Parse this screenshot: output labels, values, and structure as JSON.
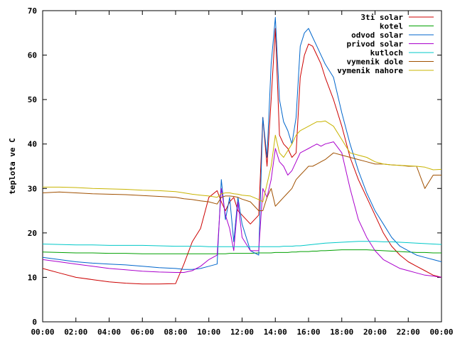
{
  "chart_data": {
    "type": "line",
    "ylabel": "teplota ve C",
    "xlim": [
      "00:00",
      "24:00"
    ],
    "ylim": [
      0,
      70
    ],
    "x_ticks": [
      "00:00",
      "02:00",
      "04:00",
      "06:00",
      "08:00",
      "10:00",
      "12:00",
      "14:00",
      "16:00",
      "18:00",
      "20:00",
      "22:00",
      "00:00"
    ],
    "y_ticks": [
      0,
      10,
      20,
      30,
      40,
      50,
      60,
      70
    ],
    "legend_position": "top-right",
    "grid": false,
    "x": [
      "00:00",
      "01:00",
      "02:00",
      "03:00",
      "04:00",
      "05:00",
      "06:00",
      "07:00",
      "08:00",
      "08:30",
      "09:00",
      "09:30",
      "10:00",
      "10:30",
      "10:45",
      "11:00",
      "11:15",
      "11:30",
      "11:45",
      "12:00",
      "12:30",
      "13:00",
      "13:15",
      "13:30",
      "13:45",
      "14:00",
      "14:15",
      "14:30",
      "14:45",
      "15:00",
      "15:15",
      "15:30",
      "15:45",
      "16:00",
      "16:15",
      "16:30",
      "16:45",
      "17:00",
      "17:30",
      "18:00",
      "18:30",
      "19:00",
      "19:30",
      "20:00",
      "20:30",
      "21:00",
      "21:30",
      "22:00",
      "22:30",
      "23:00",
      "23:30",
      "24:00"
    ],
    "series": [
      {
        "name": "3ti solar",
        "color": "#cc0000",
        "values": [
          12,
          11,
          10,
          9.5,
          9,
          8.7,
          8.5,
          8.5,
          8.6,
          13,
          18,
          21,
          28,
          29.5,
          27,
          25,
          27,
          28,
          25,
          24,
          22,
          24,
          46,
          35,
          50,
          66,
          42,
          40,
          39,
          37,
          38,
          55,
          60,
          62.5,
          62,
          60,
          58,
          55,
          50,
          44,
          37,
          32,
          28,
          24,
          20,
          17,
          15,
          13.5,
          12.5,
          11.5,
          10.5,
          10
        ]
      },
      {
        "name": "kotel",
        "color": "#00a000",
        "values": [
          15.7,
          15.6,
          15.5,
          15.5,
          15.4,
          15.4,
          15.3,
          15.3,
          15.3,
          15.3,
          15.3,
          15.3,
          15.3,
          15.3,
          15.3,
          15.3,
          15.4,
          15.4,
          15.4,
          15.4,
          15.4,
          15.5,
          15.5,
          15.5,
          15.5,
          15.6,
          15.6,
          15.6,
          15.6,
          15.7,
          15.7,
          15.8,
          15.8,
          15.8,
          15.9,
          15.9,
          16,
          16,
          16.1,
          16.2,
          16.2,
          16.2,
          16.2,
          16.1,
          16,
          15.9,
          15.8,
          15.7,
          15.6,
          15.6,
          15.5,
          15.5
        ]
      },
      {
        "name": "odvod solar",
        "color": "#0066cc",
        "values": [
          14.5,
          14,
          13.5,
          13.2,
          13,
          12.8,
          12.5,
          12.2,
          12,
          11.8,
          11.8,
          12,
          12.5,
          13,
          32,
          23,
          28,
          18,
          28,
          22,
          16,
          15,
          46,
          37,
          58,
          68.5,
          50,
          45,
          43,
          40,
          46,
          62,
          65,
          66,
          64,
          62,
          60,
          58,
          55,
          47,
          40,
          34,
          29,
          25,
          22,
          19,
          17,
          16,
          15,
          14.5,
          14,
          13.5
        ]
      },
      {
        "name": "privod solar",
        "color": "#aa00cc",
        "values": [
          14,
          13.5,
          13,
          12.5,
          12,
          11.7,
          11.4,
          11.2,
          11.1,
          11.1,
          11.5,
          12.5,
          14,
          15,
          30,
          24,
          21,
          16,
          27,
          19,
          16,
          16,
          30,
          28,
          32,
          39,
          36,
          35,
          33,
          34,
          36,
          38,
          38.5,
          39,
          39.5,
          40,
          39.5,
          40,
          40.5,
          38,
          30,
          23,
          19,
          16,
          14,
          13,
          12,
          11.5,
          11,
          10.5,
          10.3,
          10
        ]
      },
      {
        "name": "kutloch",
        "color": "#00c8c8",
        "values": [
          17.5,
          17.4,
          17.3,
          17.3,
          17.2,
          17.2,
          17.2,
          17.1,
          17,
          17,
          17,
          17,
          16.9,
          16.9,
          16.9,
          16.9,
          16.9,
          16.9,
          16.9,
          16.9,
          16.9,
          16.9,
          16.9,
          16.9,
          16.9,
          16.9,
          16.9,
          17,
          17,
          17,
          17.1,
          17.1,
          17.2,
          17.3,
          17.4,
          17.5,
          17.6,
          17.7,
          17.8,
          17.9,
          18,
          18.1,
          18.1,
          18.1,
          18,
          18,
          17.9,
          17.8,
          17.7,
          17.6,
          17.5,
          17.4
        ]
      },
      {
        "name": "vymenik dole",
        "color": "#a05000",
        "values": [
          29,
          29.2,
          29,
          28.8,
          28.7,
          28.6,
          28.4,
          28.2,
          28,
          27.7,
          27.5,
          27.2,
          27,
          26.5,
          28,
          28.3,
          28.3,
          28.2,
          28,
          27.6,
          27,
          25,
          25,
          28,
          30,
          26,
          27,
          28,
          29,
          30,
          32,
          33,
          34,
          35,
          35,
          35.5,
          36,
          36.5,
          38,
          37.5,
          37,
          36.5,
          36,
          35.5,
          35.5,
          35.3,
          35.2,
          35,
          35,
          30,
          33,
          33
        ]
      },
      {
        "name": "vymenik nahore",
        "color": "#c8b400",
        "values": [
          30.3,
          30.3,
          30.2,
          30,
          29.9,
          29.8,
          29.6,
          29.5,
          29.3,
          29,
          28.7,
          28.5,
          28.3,
          28,
          28.8,
          29,
          29,
          28.8,
          28.7,
          28.5,
          28.3,
          27.5,
          27,
          31,
          35,
          42,
          38,
          37,
          38.5,
          40,
          42,
          43,
          43.5,
          44,
          44.5,
          45,
          45,
          45.2,
          44,
          41,
          38,
          37.5,
          37,
          36,
          35.5,
          35.3,
          35.2,
          35.1,
          35,
          34.8,
          34.2,
          34.3
        ]
      }
    ]
  }
}
